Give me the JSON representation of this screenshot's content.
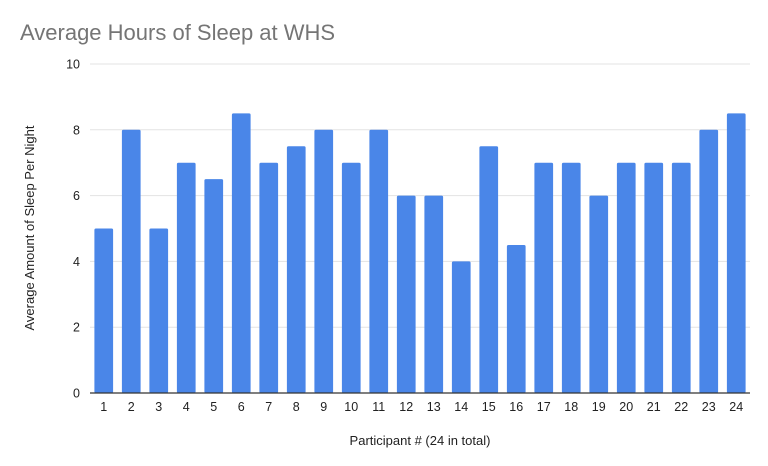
{
  "chart_data": {
    "type": "bar",
    "title": "Average Hours of Sleep at WHS",
    "xlabel": "Participant # (24 in total)",
    "ylabel": "Average Amount of Sleep Per Night",
    "categories": [
      "1",
      "2",
      "3",
      "4",
      "5",
      "6",
      "7",
      "8",
      "9",
      "10",
      "11",
      "12",
      "13",
      "14",
      "15",
      "16",
      "17",
      "18",
      "19",
      "20",
      "21",
      "22",
      "23",
      "24"
    ],
    "values": [
      5,
      8,
      5,
      7,
      6.5,
      8.5,
      7,
      7.5,
      8,
      7,
      8,
      6,
      6,
      4,
      7.5,
      4.5,
      7,
      7,
      6,
      7,
      7,
      7,
      8,
      8.5
    ],
    "ylim": [
      0,
      10
    ],
    "yticks": [
      "0",
      "2",
      "4",
      "6",
      "8",
      "10"
    ],
    "grid": true,
    "legend": "none",
    "bar_color": "#4a86e8"
  }
}
